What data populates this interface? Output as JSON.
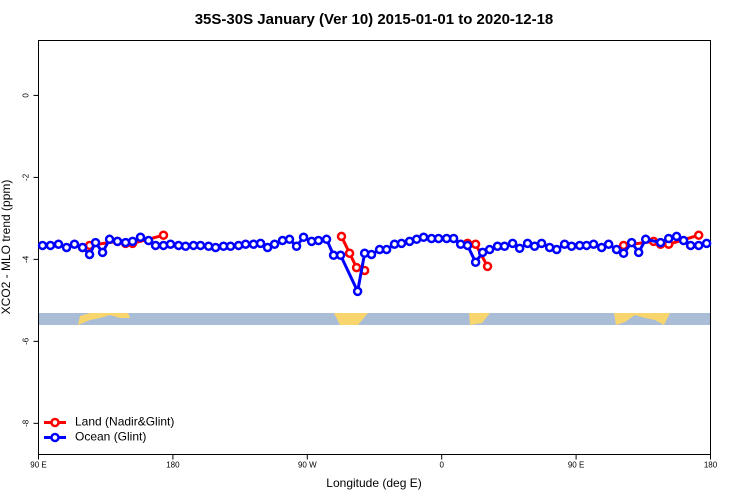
{
  "chart_data": {
    "type": "line",
    "title": "35S-30S January (Ver 10)   2015-01-01 to 2020-12-18",
    "xlabel": "Longitude (deg E)",
    "ylabel": "XCO2 - MLO trend (ppm)",
    "xlim": [
      90,
      540
    ],
    "ylim": [
      -8.76,
      1.34
    ],
    "xticks": [
      {
        "value": 90,
        "label": "90 E"
      },
      180,
      {
        "value": 270,
        "label": "90 W"
      },
      {
        "value": 360,
        "label": "0"
      },
      {
        "value": 450,
        "label": "90 E"
      },
      {
        "value": 540,
        "label": "180"
      }
    ],
    "yticks": [
      0,
      -2,
      -4,
      -6,
      -8
    ],
    "legend": "lower left",
    "series": [
      {
        "name": "Land (Nadir&Glint)",
        "color": "#ff0000",
        "x": [
          119.5,
          124.2,
          142.9,
          148.3,
          153,
          173.7,
          null,
          292.9,
          298.3,
          303,
          308.4,
          null,
          377.3,
          382.7,
          390.7,
          null,
          481.8,
          501.9,
          506.6,
          512,
          532.1
        ],
        "values": [
          -3.71,
          -3.66,
          -3.56,
          -3.61,
          -3.61,
          -3.41,
          null,
          -3.44,
          -3.85,
          -4.2,
          -4.27,
          null,
          -3.61,
          -3.63,
          -4.17,
          null,
          -3.66,
          -3.56,
          -3.63,
          -3.63,
          -3.41
        ]
      },
      {
        "name": "Ocean (Glint)",
        "color": "#0000ff",
        "x": [
          92.7,
          98,
          103.4,
          108.8,
          114.1,
          119.5,
          124.2,
          128.2,
          132.9,
          137.6,
          142.9,
          148.3,
          153,
          158.3,
          163.7,
          168.4,
          173.7,
          178.4,
          183.8,
          188.5,
          193.8,
          198.5,
          203.9,
          208.6,
          213.9,
          218.6,
          224,
          228.7,
          234,
          238.7,
          243.4,
          248.1,
          253.4,
          258.1,
          262.8,
          267.5,
          272.9,
          277.5,
          282.9,
          287.6,
          292.3,
          303.7,
          308.4,
          313,
          318.4,
          323.1,
          328.4,
          333.1,
          338.5,
          343.2,
          347.9,
          353.2,
          357.9,
          363.3,
          368,
          372.7,
          377.3,
          382.7,
          387.4,
          392.1,
          397.4,
          402.1,
          407.5,
          412.2,
          417.5,
          422.2,
          426.9,
          432.3,
          437,
          442.3,
          447,
          452.4,
          457,
          461.7,
          467.1,
          471.8,
          477.1,
          481.8,
          487.2,
          491.9,
          496.6,
          506.6,
          512,
          517.3,
          522,
          526.7,
          532.1,
          537.4
        ],
        "values": [
          -3.66,
          -3.66,
          -3.63,
          -3.71,
          -3.63,
          -3.71,
          -3.88,
          -3.59,
          -3.83,
          -3.51,
          -3.56,
          -3.59,
          -3.56,
          -3.46,
          -3.54,
          -3.66,
          -3.66,
          -3.63,
          -3.66,
          -3.68,
          -3.66,
          -3.66,
          -3.68,
          -3.71,
          -3.68,
          -3.68,
          -3.66,
          -3.63,
          -3.63,
          -3.61,
          -3.71,
          -3.63,
          -3.54,
          -3.51,
          -3.68,
          -3.46,
          -3.56,
          -3.54,
          -3.51,
          -3.9,
          -3.9,
          -4.78,
          -3.85,
          -3.88,
          -3.76,
          -3.76,
          -3.63,
          -3.61,
          -3.56,
          -3.51,
          -3.46,
          -3.49,
          -3.49,
          -3.49,
          -3.49,
          -3.63,
          -3.66,
          -4.07,
          -3.83,
          -3.76,
          -3.68,
          -3.68,
          -3.61,
          -3.73,
          -3.61,
          -3.68,
          -3.61,
          -3.71,
          -3.76,
          -3.63,
          -3.68,
          -3.66,
          -3.66,
          -3.63,
          -3.71,
          -3.63,
          -3.76,
          -3.85,
          -3.59,
          -3.83,
          -3.51,
          -3.59,
          -3.49,
          -3.44,
          -3.54,
          -3.66,
          -3.66,
          -3.61
        ]
      }
    ]
  }
}
